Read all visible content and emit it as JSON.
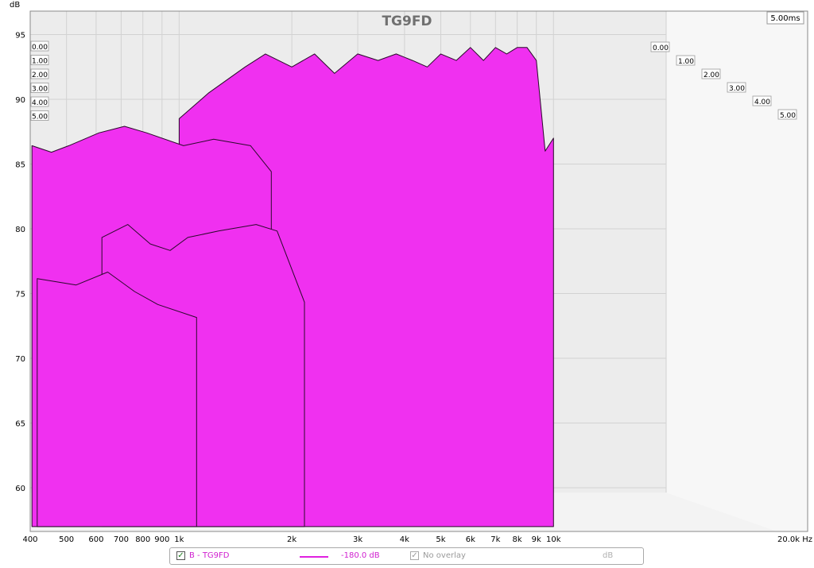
{
  "chart_data": {
    "type": "area",
    "subtype": "cumulative spectral decay (waterfall)",
    "title": "TG9FD",
    "y_axis": {
      "unit_label": "dB",
      "ticks": [
        95,
        90,
        85,
        80,
        75,
        70,
        65,
        60
      ],
      "range": [
        57,
        97
      ]
    },
    "x_axis": {
      "unit_label": "Hz",
      "scale": "log",
      "range": [
        400,
        20000
      ],
      "ticks": [
        {
          "value": 400,
          "label": "400"
        },
        {
          "value": 500,
          "label": "500"
        },
        {
          "value": 600,
          "label": "600"
        },
        {
          "value": 700,
          "label": "700"
        },
        {
          "value": 800,
          "label": "800"
        },
        {
          "value": 900,
          "label": "900"
        },
        {
          "value": 1000,
          "label": "1k"
        },
        {
          "value": 2000,
          "label": "2k"
        },
        {
          "value": 3000,
          "label": "3k"
        },
        {
          "value": 4000,
          "label": "4k"
        },
        {
          "value": 5000,
          "label": "5k"
        },
        {
          "value": 6000,
          "label": "6k"
        },
        {
          "value": 7000,
          "label": "7k"
        },
        {
          "value": 8000,
          "label": "8k"
        },
        {
          "value": 9000,
          "label": "9k"
        },
        {
          "value": 10000,
          "label": "10k"
        },
        {
          "value": 20000,
          "label": "20.0k Hz"
        }
      ]
    },
    "z_axis": {
      "unit": "ms",
      "depth_label": "5.00ms",
      "left_labels": [
        "0.00",
        "1.00",
        "2.00",
        "3.00",
        "4.00",
        "5.00"
      ],
      "right_labels": [
        "0.00",
        "1.00",
        "2.00",
        "3.00",
        "4.00",
        "5.00"
      ]
    },
    "series_color": "#f030f0",
    "series_outline": "#2a0a2a",
    "series": [
      {
        "time_ms": 0,
        "freq": [
          1000,
          1200,
          1500,
          1700,
          2000,
          2300,
          2600,
          3000,
          3400,
          3800,
          4200,
          4600,
          5000,
          5500,
          6000,
          6500,
          7000,
          7500,
          8000,
          8500,
          9000,
          9500,
          10000
        ],
        "db": [
          88.5,
          90.5,
          92.5,
          93.5,
          92.5,
          93.5,
          92.0,
          93.5,
          93.0,
          93.5,
          93.0,
          92.5,
          93.5,
          93.0,
          94.0,
          93.0,
          94.0,
          93.5,
          94.0,
          94.0,
          93.0,
          86.0,
          87.0
        ]
      },
      {
        "time_ms": 0.5,
        "freq": [
          400,
          450,
          500,
          600,
          700,
          800,
          1000,
          1200,
          1500,
          1700
        ],
        "db": [
          86.5,
          86.0,
          86.5,
          87.5,
          88.0,
          87.5,
          86.5,
          87.0,
          86.5,
          84.5
        ]
      },
      {
        "time_ms": 1.0,
        "freq": [
          600,
          700,
          800,
          900,
          1000,
          1200,
          1500,
          1700,
          2000
        ],
        "db": [
          79.5,
          80.5,
          79.0,
          78.5,
          79.5,
          80.0,
          80.5,
          80.0,
          74.5
        ]
      },
      {
        "time_ms": 2.0,
        "freq": [
          400,
          500,
          600,
          700,
          800,
          1000
        ],
        "db": [
          76.5,
          76.0,
          77.0,
          75.5,
          74.5,
          73.5
        ]
      }
    ]
  },
  "legend": {
    "series_label": "B - TG9FD",
    "line_level": "-180.0 dB",
    "overlay_label": "No overlay",
    "unit": "dB"
  }
}
